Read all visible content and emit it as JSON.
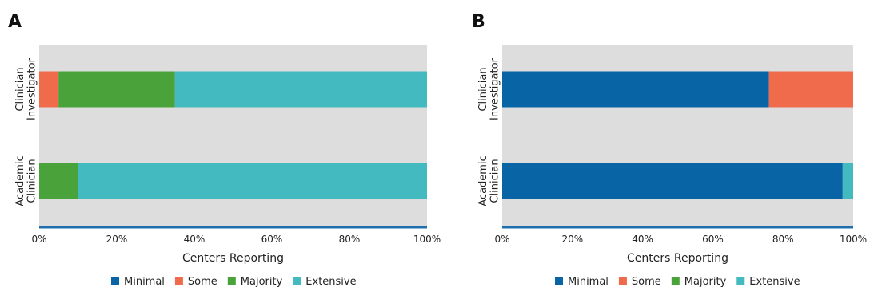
{
  "chart_data": [
    {
      "type": "bar",
      "orientation": "horizontal",
      "stacked": true,
      "panel_label": "A",
      "categories": [
        "Clinician Investigator",
        "Academic Clinician"
      ],
      "category_label_lines": [
        [
          "Clinician",
          "Investigator"
        ],
        [
          "Academic",
          "Clinician"
        ]
      ],
      "series": [
        {
          "name": "Minimal",
          "values": [
            0,
            0
          ]
        },
        {
          "name": "Some",
          "values": [
            5,
            0
          ]
        },
        {
          "name": "Majority",
          "values": [
            30,
            10
          ]
        },
        {
          "name": "Extensive",
          "values": [
            65,
            90
          ]
        }
      ],
      "xlabel": "Centers Reporting",
      "xlim": [
        0,
        100
      ],
      "xticks": [
        "0%",
        "20%",
        "40%",
        "60%",
        "80%",
        "100%"
      ],
      "grid": false,
      "legend_position": "bottom"
    },
    {
      "type": "bar",
      "orientation": "horizontal",
      "stacked": true,
      "panel_label": "B",
      "categories": [
        "Clinician Investigator",
        "Academic Clinician"
      ],
      "category_label_lines": [
        [
          "Clinician",
          "Investigator"
        ],
        [
          "Academic",
          "Clinician"
        ]
      ],
      "series": [
        {
          "name": "Minimal",
          "values": [
            76,
            97
          ]
        },
        {
          "name": "Some",
          "values": [
            24,
            0
          ]
        },
        {
          "name": "Majority",
          "values": [
            0,
            0
          ]
        },
        {
          "name": "Extensive",
          "values": [
            0,
            3
          ]
        }
      ],
      "xlabel": "Centers Reporting",
      "xlim": [
        0,
        100
      ],
      "xticks": [
        "0%",
        "20%",
        "40%",
        "60%",
        "80%",
        "100%"
      ],
      "grid": false,
      "legend_position": "bottom"
    }
  ],
  "colors": {
    "Minimal": "#0864a4",
    "Some": "#ef6b4b",
    "Majority": "#4aa23a",
    "Extensive": "#43b9c0",
    "plot_background": "#dddddd",
    "axis_line": "#1f6fae"
  }
}
